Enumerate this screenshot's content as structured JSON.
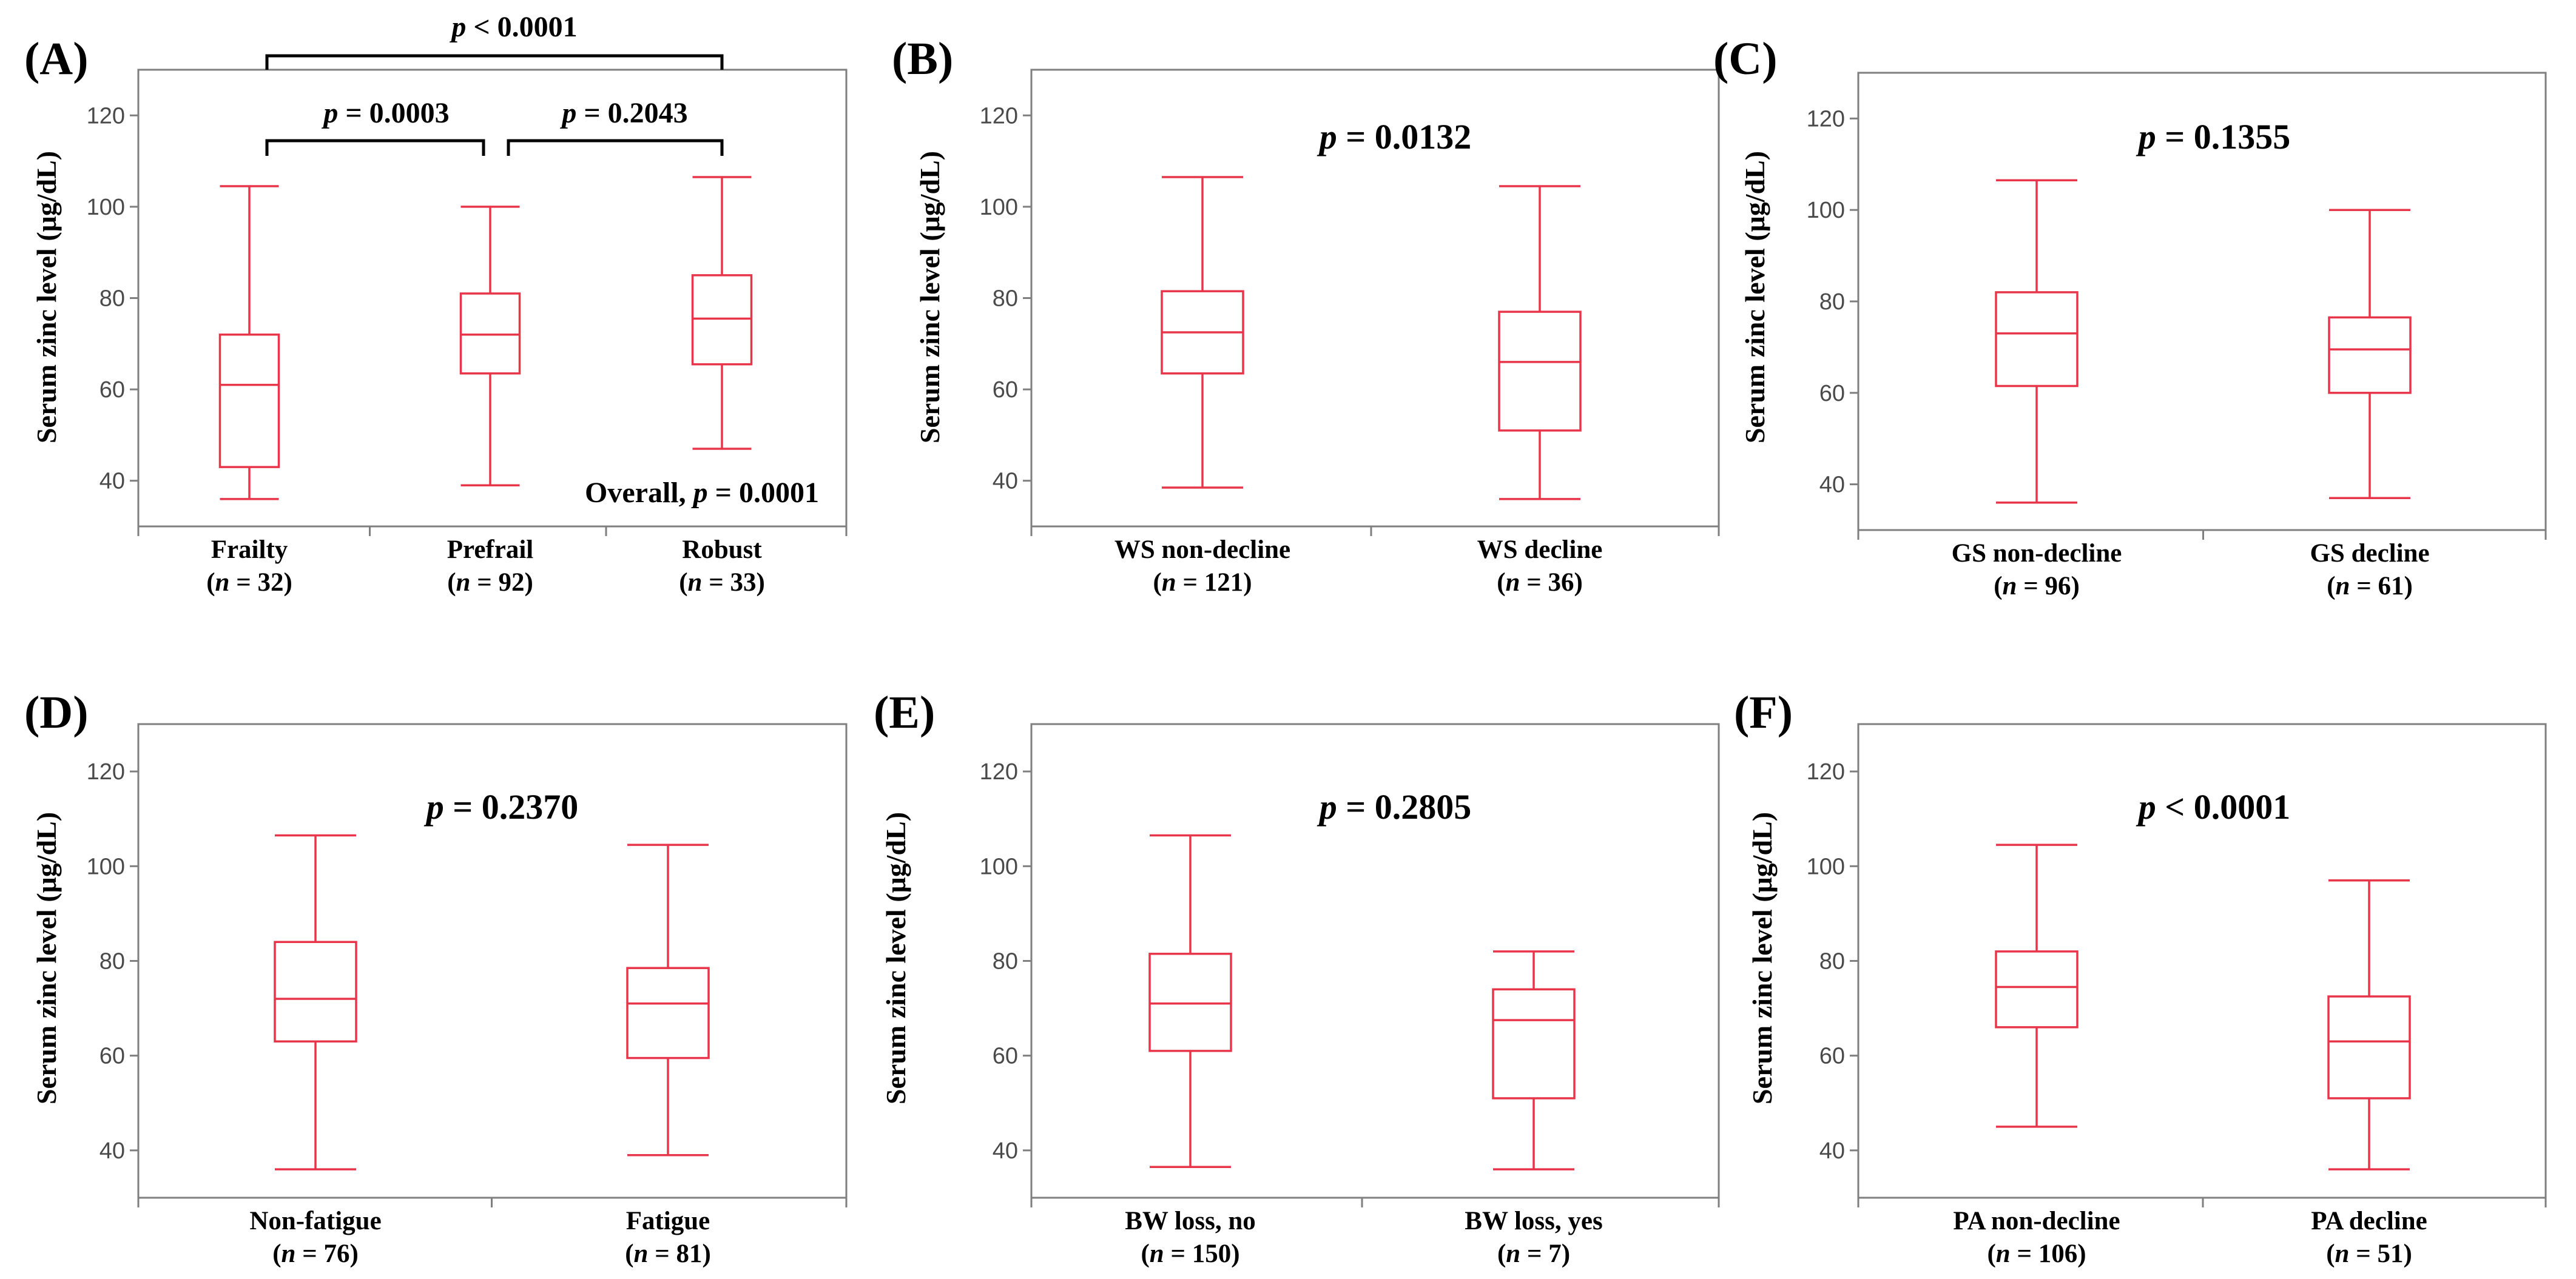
{
  "figure": {
    "y_axis_label": "Serum zinc  level (μg/dL)"
  },
  "chart_data": [
    {
      "type": "box",
      "panel": "(A)",
      "ylabel": "Serum zinc  level (μg/dL)",
      "ylim": [
        30,
        130
      ],
      "yticks": [
        40,
        60,
        80,
        100,
        120
      ],
      "categories": [
        {
          "name": "Frailty",
          "n_label": "(n = 32)",
          "min": 36,
          "q1": 43,
          "median": 61,
          "q3": 72,
          "max": 104.5
        },
        {
          "name": "Prefrail",
          "n_label": "(n = 92)",
          "min": 39,
          "q1": 63.5,
          "median": 72,
          "q3": 81,
          "max": 100
        },
        {
          "name": "Robust",
          "n_label": "(n = 33)",
          "min": 47,
          "q1": 65.5,
          "median": 75.5,
          "q3": 85,
          "max": 106.5
        }
      ],
      "p_text": "Overall, p = 0.0001",
      "comparisons": [
        {
          "pair": [
            0,
            1
          ],
          "text": "p = 0.0003"
        },
        {
          "pair": [
            1,
            2
          ],
          "text": "p = 0.2043"
        },
        {
          "pair": [
            0,
            2
          ],
          "text": "p < 0.0001"
        }
      ]
    },
    {
      "type": "box",
      "panel": "(B)",
      "ylabel": "Serum zinc  level (μg/dL)",
      "ylim": [
        30,
        130
      ],
      "yticks": [
        40,
        60,
        80,
        100,
        120
      ],
      "categories": [
        {
          "name": "WS non-decline",
          "n_label": "(n = 121)",
          "min": 38.5,
          "q1": 63.5,
          "median": 72.5,
          "q3": 81.5,
          "max": 106.5
        },
        {
          "name": "WS decline",
          "n_label": "(n = 36)",
          "min": 36,
          "q1": 51,
          "median": 66,
          "q3": 77,
          "max": 104.5
        }
      ],
      "p_text": "p = 0.0132"
    },
    {
      "type": "box",
      "panel": "(C)",
      "ylabel": "Serum zinc  level (μg/dL)",
      "ylim": [
        30,
        130
      ],
      "yticks": [
        40,
        60,
        80,
        100,
        120
      ],
      "categories": [
        {
          "name": "GS non-decline",
          "n_label": "(n = 96)",
          "min": 36,
          "q1": 61.5,
          "median": 73,
          "q3": 82,
          "max": 106.5
        },
        {
          "name": "GS decline",
          "n_label": "(n = 61)",
          "min": 37,
          "q1": 60,
          "median": 69.5,
          "q3": 76.5,
          "max": 100
        }
      ],
      "p_text": "p = 0.1355"
    },
    {
      "type": "box",
      "panel": "(D)",
      "ylabel": "Serum zinc  level (μg/dL)",
      "ylim": [
        30,
        130
      ],
      "yticks": [
        40,
        60,
        80,
        100,
        120
      ],
      "categories": [
        {
          "name": "Non-fatigue",
          "n_label": "(n = 76)",
          "min": 36,
          "q1": 63,
          "median": 72,
          "q3": 84,
          "max": 106.5
        },
        {
          "name": "Fatigue",
          "n_label": "(n = 81)",
          "min": 39,
          "q1": 59.5,
          "median": 71,
          "q3": 78.5,
          "max": 104.5
        }
      ],
      "p_text": "p = 0.2370"
    },
    {
      "type": "box",
      "panel": "(E)",
      "ylabel": "Serum zinc  level (μg/dL)",
      "ylim": [
        30,
        130
      ],
      "yticks": [
        40,
        60,
        80,
        100,
        120
      ],
      "categories": [
        {
          "name": "BW loss, no",
          "n_label": "(n = 150)",
          "min": 36.5,
          "q1": 61,
          "median": 71,
          "q3": 81.5,
          "max": 106.5
        },
        {
          "name": "BW loss, yes",
          "n_label": "(n = 7)",
          "min": 36,
          "q1": 51,
          "median": 67.5,
          "q3": 74,
          "max": 82
        }
      ],
      "p_text": "p = 0.2805"
    },
    {
      "type": "box",
      "panel": "(F)",
      "ylabel": "Serum zinc  level (μg/dL)",
      "ylim": [
        30,
        130
      ],
      "yticks": [
        40,
        60,
        80,
        100,
        120
      ],
      "categories": [
        {
          "name": "PA non-decline",
          "n_label": "(n = 106)",
          "min": 45,
          "q1": 66,
          "median": 74.5,
          "q3": 82,
          "max": 104.5
        },
        {
          "name": "PA decline",
          "n_label": "(n = 51)",
          "min": 36,
          "q1": 51,
          "median": 63,
          "q3": 72.5,
          "max": 97
        }
      ],
      "p_text": "p < 0.0001"
    }
  ],
  "colors": {
    "box": "#e8354a",
    "axis": "#7f7f7f",
    "text": "#000000",
    "tick": "#4a4a4a"
  }
}
